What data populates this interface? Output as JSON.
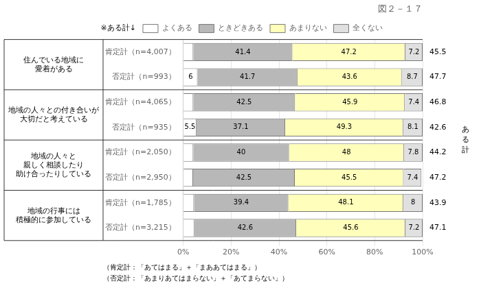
{
  "chart_data": {
    "type": "bar",
    "orientation": "horizontal",
    "stacked": true,
    "title": "図２－１７",
    "legend": "top",
    "grid": true,
    "data_labels": true,
    "groups": [
      {
        "label": "住んでいる地域に\n愛着がある",
        "categories": [
          "肯定計（n=4,007）",
          "否定計（n=993）"
        ]
      },
      {
        "label": "地域の人々との付き合いが\n大切だと考えている",
        "categories": [
          "肯定計（n=4,065）",
          "否定計（n=935）"
        ]
      },
      {
        "label": "地域の人々と\n親しく相談したり\n助け合ったりしている",
        "categories": [
          "肯定計（n=2,050）",
          "否定計（n=2,950）"
        ]
      },
      {
        "label": "地域の行事には\n積極的に参加している",
        "categories": [
          "肯定計（n=1,785）",
          "否定計（n=3,215）"
        ]
      }
    ],
    "series": [
      {
        "name": "よくある",
        "color": "white",
        "values": [
          4.2,
          6.0,
          4.2,
          5.5,
          4.2,
          4.1,
          4.5,
          4.6
        ],
        "value_labels": [
          null,
          "6",
          null,
          "5.5",
          null,
          null,
          null,
          null
        ]
      },
      {
        "name": "ときどきある",
        "color": "#b8b8b8",
        "values": [
          41.4,
          41.7,
          42.5,
          37.1,
          40.0,
          42.5,
          39.4,
          42.6
        ]
      },
      {
        "name": "あまりない",
        "color": "#ffffbb",
        "values": [
          47.2,
          43.6,
          45.9,
          49.3,
          48.0,
          45.5,
          48.1,
          45.6
        ]
      },
      {
        "name": "全くない",
        "color": "#e0e0e0",
        "values": [
          7.2,
          8.7,
          7.4,
          8.1,
          7.8,
          7.4,
          8.0,
          7.2
        ]
      }
    ],
    "totals_label": "ある計",
    "totals": [
      45.5,
      47.7,
      46.8,
      42.6,
      44.2,
      47.2,
      43.9,
      47.1
    ],
    "xlim": [
      0,
      100
    ],
    "xticks": [
      {
        "value": 0,
        "label": "0%"
      },
      {
        "value": 20,
        "label": "20%"
      },
      {
        "value": 40,
        "label": "40%"
      },
      {
        "value": 60,
        "label": "60%"
      },
      {
        "value": 80,
        "label": "80%"
      },
      {
        "value": 100,
        "label": "100%"
      }
    ],
    "annotations": [
      {
        "text": "※ある計↓",
        "position": "legend"
      },
      {
        "text": "（肯定計：「あてはまる」＋「まああてはまる」）",
        "position": "footer"
      },
      {
        "text": "（否定計：「あまりあてはまらない」＋「あてまらない」）",
        "position": "footer"
      }
    ]
  }
}
